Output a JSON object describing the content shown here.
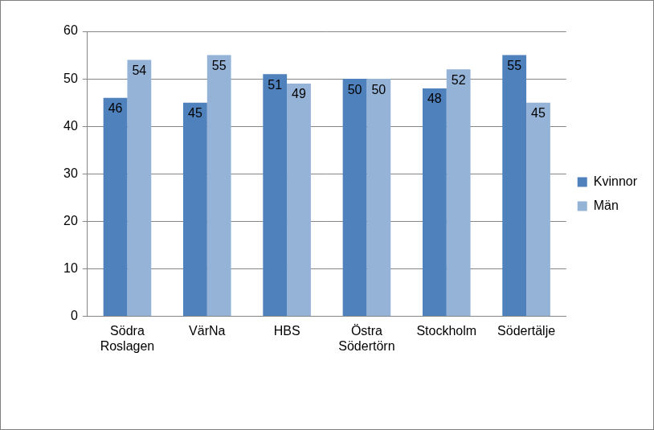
{
  "chart_data": {
    "type": "bar",
    "categories": [
      "Södra Roslagen",
      "VärNa",
      "HBS",
      "Östra Södertörn",
      "Stockholm",
      "Södertälje"
    ],
    "series": [
      {
        "name": "Kvinnor",
        "color": "#4f81bd",
        "values": [
          46,
          45,
          51,
          50,
          48,
          55
        ]
      },
      {
        "name": "Män",
        "color": "#95b3d7",
        "values": [
          54,
          55,
          49,
          50,
          52,
          45
        ]
      }
    ],
    "ylim": [
      0,
      60
    ],
    "yticks": [
      0,
      10,
      20,
      30,
      40,
      50,
      60
    ],
    "grid": true,
    "legend": "right",
    "data_labels": true
  }
}
